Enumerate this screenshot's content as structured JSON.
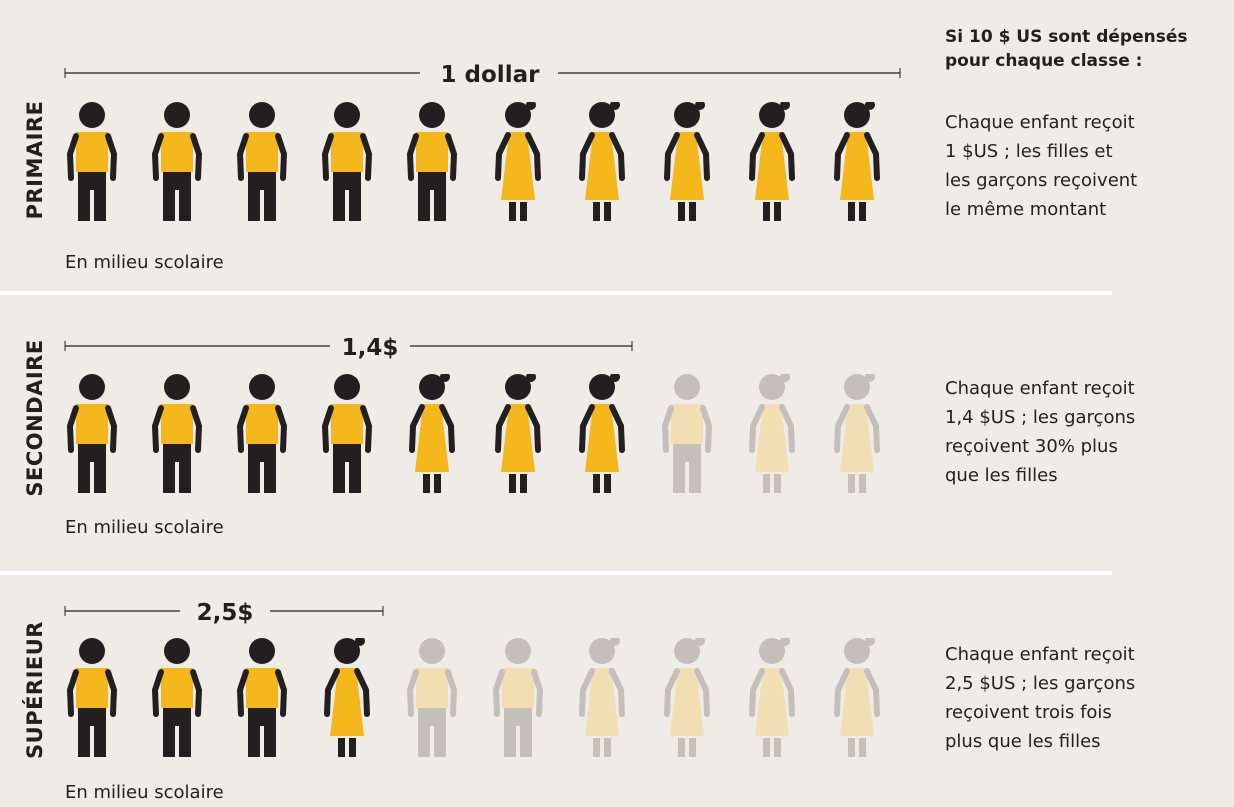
{
  "heading": [
    "Si 10 $ US sont dépensés",
    "pour chaque classe :"
  ],
  "rows": [
    {
      "level": "PRIMAIRE",
      "amount": "1 dollar",
      "note": "En milieu scolaire",
      "description": [
        "Chaque enfant reçoit",
        "1 $US ; les filles et",
        "les garçons reçoivent",
        "le même montant"
      ]
    },
    {
      "level": "SECONDAIRE",
      "amount": "1,4$",
      "note": "En milieu scolaire",
      "description": [
        "Chaque enfant reçoit",
        "1,4 $US ; les garçons",
        "reçoivent 30% plus",
        "que les filles"
      ]
    },
    {
      "level": "SUPÉRIEUR",
      "amount": "2,5$",
      "note": "En milieu scolaire",
      "description": [
        "Chaque enfant reçoit",
        "2,5 $US ; les garçons",
        "reçoivent trois fois",
        "plus que les filles"
      ]
    }
  ]
}
